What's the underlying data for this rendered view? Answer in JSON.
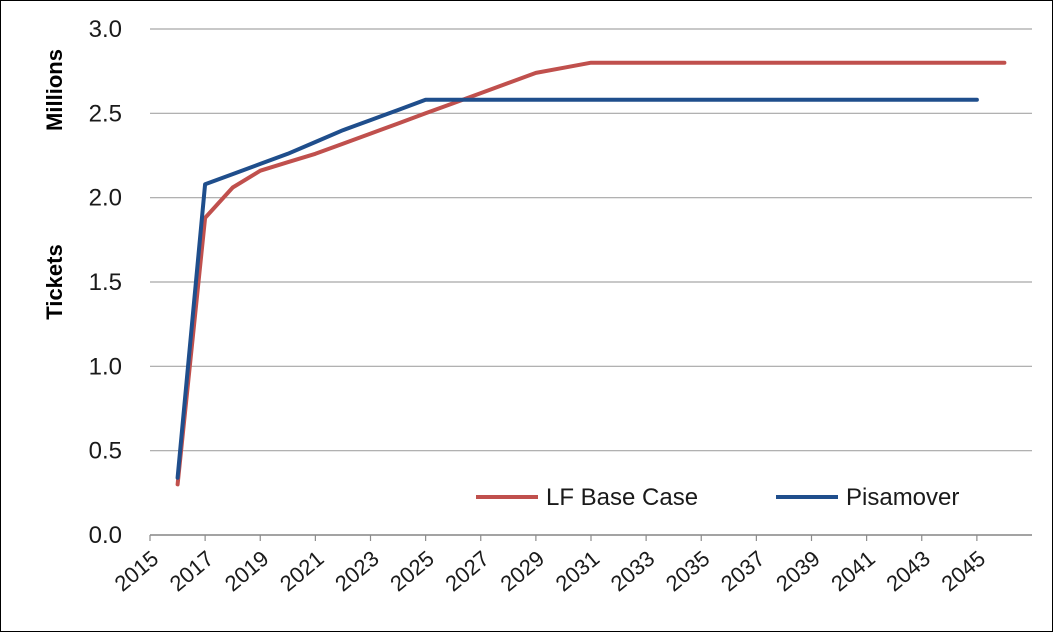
{
  "chart_data": {
    "type": "line",
    "ylabel_top": "Millions",
    "ylabel_bottom": "Tickets",
    "ylim": [
      0,
      3.0
    ],
    "yticks": [
      "0.0",
      "0.5",
      "1.0",
      "1.5",
      "2.0",
      "2.5",
      "3.0"
    ],
    "xlim": [
      2015,
      2047
    ],
    "xticks": [
      "2015",
      "2017",
      "2019",
      "2021",
      "2023",
      "2025",
      "2027",
      "2029",
      "2031",
      "2033",
      "2035",
      "2037",
      "2039",
      "2041",
      "2043",
      "2045"
    ],
    "grid": "horizontal",
    "legend_position": "bottom-right",
    "series": [
      {
        "name": "LF Base Case",
        "color": "#c0504d",
        "x": [
          2016,
          2017,
          2018,
          2019,
          2020,
          2021,
          2022,
          2023,
          2024,
          2025,
          2026,
          2027,
          2028,
          2029,
          2030,
          2031,
          2032,
          2033,
          2034,
          2035,
          2036,
          2037,
          2038,
          2039,
          2040,
          2041,
          2042,
          2043,
          2044,
          2045,
          2046
        ],
        "y": [
          0.3,
          1.88,
          2.06,
          2.16,
          2.21,
          2.26,
          2.32,
          2.38,
          2.44,
          2.5,
          2.56,
          2.62,
          2.68,
          2.74,
          2.77,
          2.8,
          2.8,
          2.8,
          2.8,
          2.8,
          2.8,
          2.8,
          2.8,
          2.8,
          2.8,
          2.8,
          2.8,
          2.8,
          2.8,
          2.8,
          2.8
        ]
      },
      {
        "name": "Pisamover",
        "color": "#1f4e8c",
        "x": [
          2016,
          2017,
          2018,
          2019,
          2020,
          2021,
          2022,
          2023,
          2024,
          2025,
          2026,
          2027,
          2028,
          2029,
          2030,
          2031,
          2032,
          2033,
          2034,
          2035,
          2036,
          2037,
          2038,
          2039,
          2040,
          2041,
          2042,
          2043,
          2044,
          2045
        ],
        "y": [
          0.34,
          2.08,
          2.14,
          2.2,
          2.26,
          2.33,
          2.4,
          2.46,
          2.52,
          2.58,
          2.58,
          2.58,
          2.58,
          2.58,
          2.58,
          2.58,
          2.58,
          2.58,
          2.58,
          2.58,
          2.58,
          2.58,
          2.58,
          2.58,
          2.58,
          2.58,
          2.58,
          2.58,
          2.58,
          2.58
        ]
      }
    ]
  }
}
